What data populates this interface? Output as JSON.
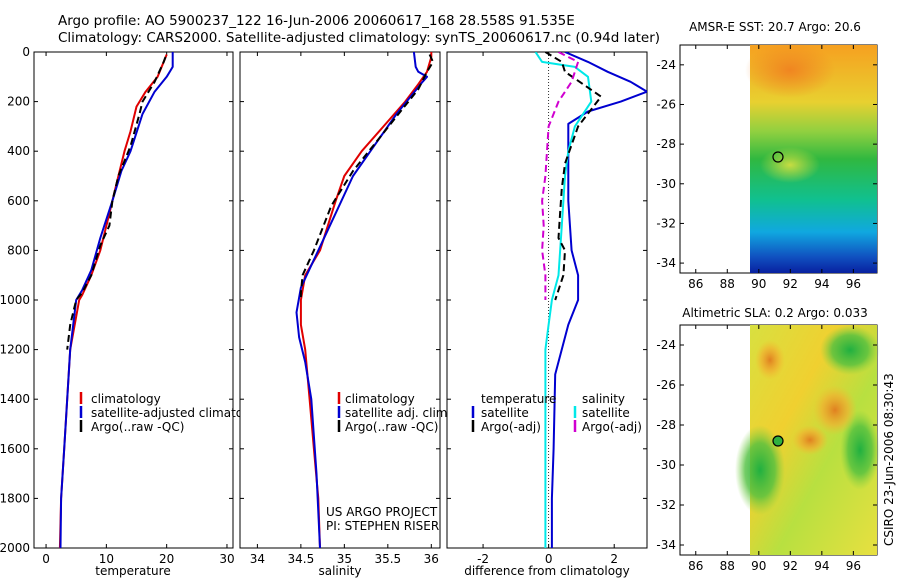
{
  "title": {
    "line1": "Argo profile: AO 5900237_122 16-Jun-2006 20060617_168 28.558S 91.535E",
    "line2": "Climatology: CARS2000. Satellite-adjusted climatology: synTS_20060617.nc (0.94d later)"
  },
  "colors": {
    "climatology": "#e00000",
    "satellite": "#0000d0",
    "argo": "#000000",
    "cyan": "#00e8e8",
    "magenta": "#d000d0"
  },
  "chart_data": [
    {
      "type": "line",
      "name": "temperature",
      "xlabel": "temperature",
      "ylim": [
        2000,
        0
      ],
      "xlim": [
        -2,
        31
      ],
      "xticks": [
        0,
        10,
        20,
        30
      ],
      "yticks": [
        0,
        200,
        400,
        600,
        800,
        1000,
        1200,
        1400,
        1600,
        1800,
        2000
      ],
      "legend": [
        "climatology",
        "satellite-adjusted climatology",
        "Argo(..raw -QC)"
      ],
      "series": [
        {
          "name": "climatology",
          "color": "#e00000",
          "dash": "",
          "x": [
            20,
            19.5,
            18.5,
            16.5,
            15,
            14,
            13,
            12,
            10,
            9,
            7.5,
            6,
            5.5,
            4,
            3.5,
            3,
            2.5,
            2.3
          ],
          "y": [
            10,
            40,
            100,
            160,
            220,
            320,
            400,
            500,
            700,
            800,
            900,
            980,
            1000,
            1200,
            1400,
            1600,
            1800,
            2000
          ]
        },
        {
          "name": "satellite",
          "color": "#0000d0",
          "dash": "",
          "x": [
            21,
            21,
            20,
            18,
            16,
            14,
            12.5,
            11,
            9,
            7.5,
            6,
            5,
            4,
            3.5,
            3,
            2.5,
            2.4
          ],
          "y": [
            0,
            60,
            100,
            160,
            250,
            400,
            480,
            600,
            750,
            880,
            960,
            1000,
            1200,
            1400,
            1600,
            1800,
            2000
          ]
        },
        {
          "name": "Argo",
          "color": "#000000",
          "dash": "7,4",
          "x": [
            19.8,
            19.5,
            18,
            16,
            15.5,
            14,
            12,
            11,
            10.5,
            9,
            7.5,
            6,
            5,
            4,
            3.5
          ],
          "y": [
            20,
            40,
            120,
            200,
            250,
            380,
            500,
            600,
            700,
            780,
            900,
            970,
            1000,
            1100,
            1200
          ]
        }
      ]
    },
    {
      "type": "line",
      "name": "salinity",
      "xlabel": "salinity",
      "ylim": [
        2000,
        0
      ],
      "xlim": [
        33.8,
        36.1
      ],
      "xticks": [
        34,
        34.5,
        35,
        35.5,
        36
      ],
      "legend": [
        "climatology",
        "satellite adj. clim.",
        "Argo(..raw -QC)"
      ],
      "series": [
        {
          "name": "climatology",
          "color": "#e00000",
          "dash": "",
          "x": [
            36,
            36,
            35.95,
            35.85,
            35.7,
            35.45,
            35.2,
            35,
            34.9,
            34.72,
            34.55,
            34.5,
            34.5,
            34.55,
            34.6,
            34.65,
            34.7,
            34.72
          ],
          "y": [
            0,
            20,
            80,
            130,
            200,
            300,
            400,
            500,
            600,
            800,
            900,
            1000,
            1100,
            1200,
            1400,
            1600,
            1800,
            2000
          ]
        },
        {
          "name": "satellite",
          "color": "#0000d0",
          "dash": "",
          "x": [
            35.8,
            35.82,
            35.85,
            35.95,
            35.9,
            35.6,
            35.3,
            35.1,
            34.9,
            34.7,
            34.5,
            34.45,
            34.48,
            34.55,
            34.62,
            34.68,
            34.72
          ],
          "y": [
            0,
            60,
            80,
            100,
            120,
            250,
            400,
            500,
            650,
            800,
            950,
            1050,
            1150,
            1250,
            1400,
            1700,
            2000
          ]
        },
        {
          "name": "Argo",
          "color": "#000000",
          "dash": "7,4",
          "x": [
            35.98,
            36.02,
            35.95,
            35.85,
            35.6,
            35.35,
            35.1,
            34.85,
            34.65,
            34.52,
            34.5,
            34.5
          ],
          "y": [
            10,
            40,
            80,
            150,
            260,
            370,
            480,
            620,
            800,
            900,
            970,
            1000
          ]
        }
      ]
    },
    {
      "type": "line",
      "name": "difference",
      "xlabel": "difference from climatology",
      "ylim": [
        2000,
        0
      ],
      "xlim": [
        -3.1,
        3
      ],
      "xticks": [
        -2,
        0,
        2
      ],
      "zero_line": true,
      "legend": {
        "temperature_header": "temperature",
        "salinity_header": "salinity",
        "satellite": "satellite",
        "argo_adj": "Argo(-adj)"
      },
      "series": [
        {
          "name": "temperature satellite",
          "color": "#0000d0",
          "dash": "",
          "x": [
            0.5,
            1.2,
            1.8,
            2.5,
            3,
            2.2,
            1.2,
            0.6,
            0.6,
            0.6,
            0.7,
            0.9,
            0.9,
            0.6,
            0.2,
            0.15,
            0.1,
            0.1
          ],
          "y": [
            0,
            40,
            80,
            120,
            160,
            200,
            240,
            290,
            400,
            600,
            800,
            900,
            1000,
            1100,
            1300,
            1600,
            1800,
            2000
          ]
        },
        {
          "name": "salinity satellite",
          "color": "#00e8e8",
          "dash": "",
          "x": [
            -0.4,
            -0.2,
            0.8,
            1.2,
            1.3,
            0.8,
            0.6,
            0.5,
            0.4,
            0.3,
            0.1,
            0,
            -0.1,
            -0.1,
            -0.1,
            -0.1
          ],
          "y": [
            0,
            40,
            60,
            100,
            200,
            300,
            400,
            500,
            700,
            900,
            1000,
            1100,
            1200,
            1500,
            1800,
            2000
          ]
        },
        {
          "name": "temperature Argo",
          "color": "#000000",
          "dash": "7,4",
          "x": [
            -0.1,
            0.4,
            0.5,
            1.6,
            0.9,
            0.5,
            0.4,
            0.35,
            0.3,
            0.5,
            0.45,
            0.3,
            0.2
          ],
          "y": [
            0,
            40,
            80,
            180,
            300,
            450,
            550,
            650,
            750,
            800,
            900,
            960,
            1000
          ]
        },
        {
          "name": "salinity Argo",
          "color": "#d000d0",
          "dash": "7,4",
          "x": [
            0.3,
            0.6,
            0.9,
            0.7,
            0.3,
            0,
            -0.1,
            -0.2,
            -0.15,
            -0.2,
            -0.1,
            -0.1
          ],
          "y": [
            0,
            20,
            40,
            120,
            200,
            300,
            500,
            600,
            700,
            800,
            900,
            1000
          ]
        }
      ]
    }
  ],
  "maps": [
    {
      "name": "sst-map",
      "title": "AMSR-E SST: 20.7 Argo: 20.6",
      "xticks": [
        "86",
        "88",
        "90",
        "92",
        "94",
        "96"
      ],
      "yticks": [
        "-24",
        "-26",
        "-28",
        "-30",
        "-32",
        "-34"
      ],
      "argo_position": {
        "lon": 91.5,
        "lat": -28.6
      }
    },
    {
      "name": "sla-map",
      "title": "Altimetric SLA: 0.2 Argo: 0.033",
      "xticks": [
        "86",
        "88",
        "90",
        "92",
        "94",
        "96"
      ],
      "yticks": [
        "-24",
        "-26",
        "-28",
        "-30",
        "-32",
        "-34"
      ],
      "argo_position": {
        "lon": 91.5,
        "lat": -28.6
      }
    }
  ],
  "annotations": {
    "project_line1": "US ARGO PROJECT",
    "project_line2": "PI: STEPHEN RISER",
    "side_stamp": "CSIRO 23-Jun-2006 08:30:43"
  }
}
